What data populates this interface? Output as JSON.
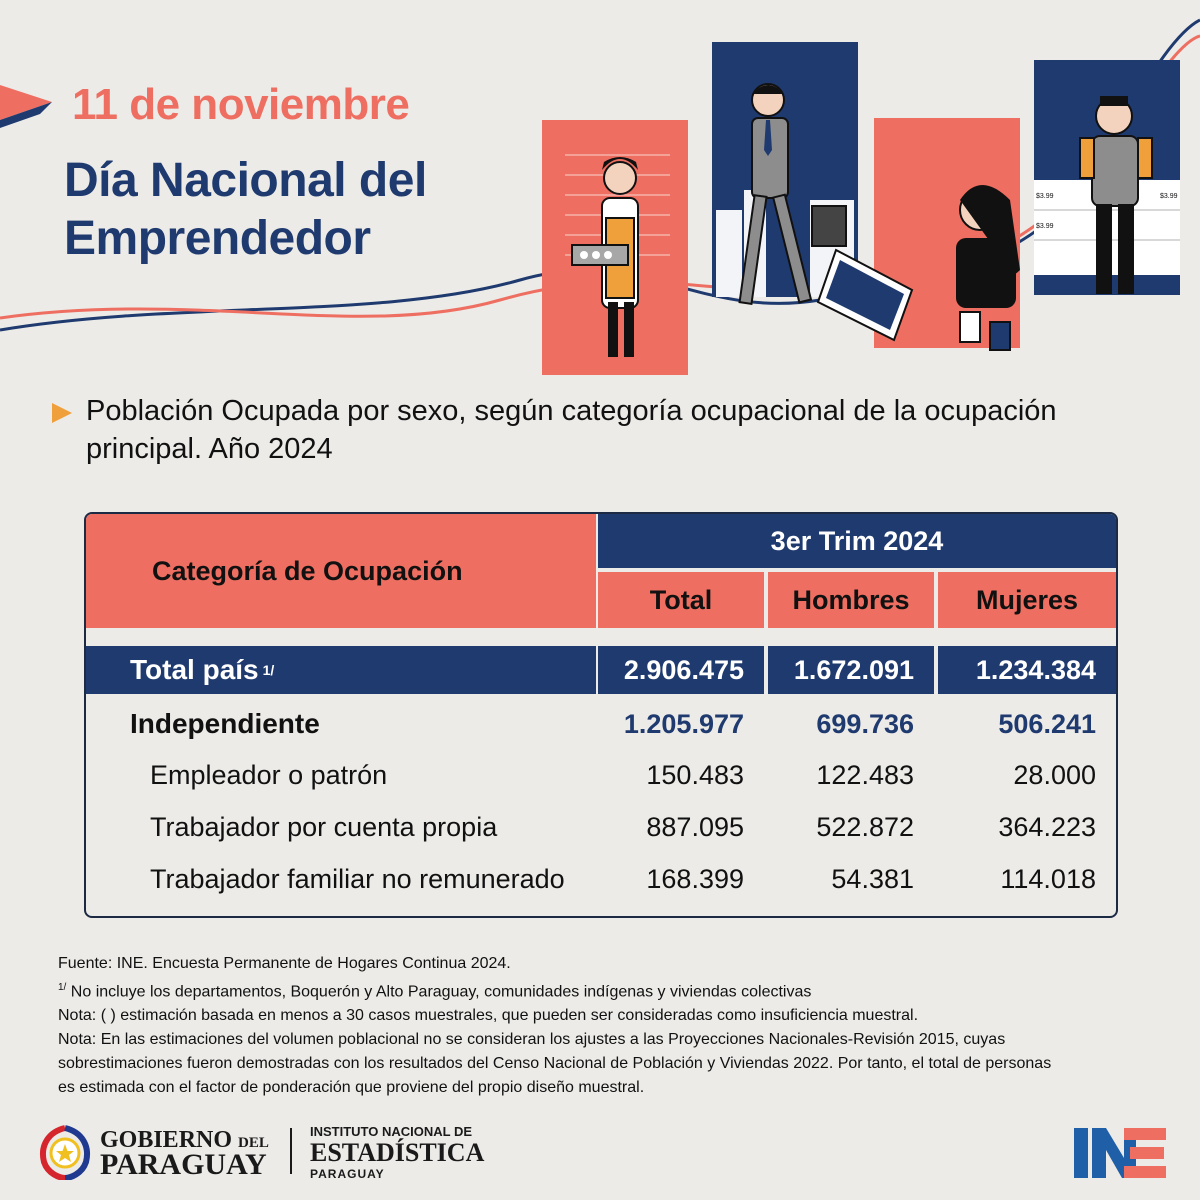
{
  "header": {
    "date": "11 de noviembre",
    "title_line1": "Día Nacional del",
    "title_line2": "Emprendedor"
  },
  "subtitle": "Población Ocupada por sexo, según categoría ocupacional de la ocupación principal. Año 2024",
  "illustration": {
    "price_tags": [
      "$3.99",
      "$3.99",
      "$3.99"
    ]
  },
  "table": {
    "category_header": "Categoría de Ocupación",
    "period_header": "3er Trim 2024",
    "columns": [
      "Total",
      "Hombres",
      "Mujeres"
    ],
    "total_row": {
      "label": "Total país",
      "footnote": "1/",
      "values": [
        "2.906.475",
        "1.672.091",
        "1.234.384"
      ]
    },
    "group_row": {
      "label": "Independiente",
      "values": [
        "1.205.977",
        "699.736",
        "506.241"
      ]
    },
    "rows": [
      {
        "label": "Empleador o patrón",
        "values": [
          "150.483",
          "122.483",
          "28.000"
        ]
      },
      {
        "label": "Trabajador por cuenta propia",
        "values": [
          "887.095",
          "522.872",
          "364.223"
        ]
      },
      {
        "label": "Trabajador familiar no remunerado",
        "values": [
          "168.399",
          "54.381",
          "114.018"
        ]
      }
    ]
  },
  "notes": {
    "source": "Fuente: INE. Encuesta Permanente de Hogares Continua 2024.",
    "footnote_mark": "1/",
    "footnote": " No incluye los departamentos, Boquerón y Alto Paraguay, comunidades indígenas y viviendas colectivas",
    "note1": "Nota: ( ) estimación basada en menos a 30 casos muestrales, que pueden ser consideradas como insuficiencia muestral.",
    "note2_line1": "Nota: En las estimaciones del volumen poblacional no se consideran los ajustes a las Proyecciones Nacionales-Revisión 2015, cuyas",
    "note2_line2": "sobrestimaciones fueron demostradas con los resultados del Censo Nacional de Población y Viviendas 2022. Por tanto, el total de personas",
    "note2_line3": "es estimada con el factor de ponderación que proviene del propio diseño muestral."
  },
  "logos": {
    "gobierno_line1": "GOBIERNO",
    "gobierno_del": "DEL",
    "gobierno_line2": "PARAGUAY",
    "ine_line1": "INSTITUTO NACIONAL DE",
    "ine_line2": "ESTADÍSTICA",
    "ine_line3": "PARAGUAY",
    "ine_mark": "INE"
  },
  "colors": {
    "coral": "#ee6f61",
    "navy": "#1f3a6f",
    "background": "#ecebe8",
    "accent_orange": "#f0a03a"
  }
}
